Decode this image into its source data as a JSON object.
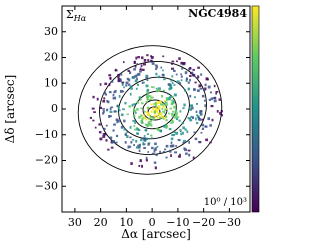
{
  "chart_data": {
    "type": "image",
    "label_symbol": "Σ",
    "label_subscript": "Hα",
    "name": "NGC4984",
    "scale_label": "10⁰ / 10³",
    "x_label": "Δα [arcsec]",
    "y_label": "Δδ [arcsec]",
    "xlim": [
      35,
      -38
    ],
    "ylim": [
      -40,
      40
    ],
    "xticks": [
      30,
      20,
      10,
      0,
      {
        "value": -10,
        "label": "−10"
      },
      {
        "value": -20,
        "label": "−20"
      },
      {
        "value": -30,
        "label": "−30"
      }
    ],
    "yticks": [
      {
        "value": -30,
        "label": "−30"
      },
      {
        "value": -20,
        "label": "−20"
      },
      {
        "value": -10,
        "label": "−10"
      },
      0,
      10,
      20,
      30
    ],
    "colormap": [
      "#440154",
      "#3b528b",
      "#21918c",
      "#5ec962",
      "#fde725"
    ]
  }
}
